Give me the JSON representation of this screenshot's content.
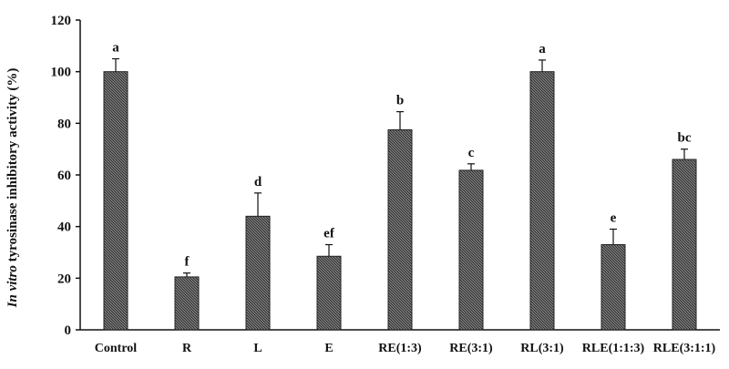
{
  "chart_data": {
    "type": "bar",
    "categories": [
      "Control",
      "R",
      "L",
      "E",
      "RE(1:3)",
      "RE(3:1)",
      "RL(3:1)",
      "RLE(1:1:3)",
      "RLE(3:1:1)"
    ],
    "values": [
      100,
      20.5,
      44,
      28.5,
      77.5,
      61.8,
      100,
      33,
      66
    ],
    "errors": [
      5,
      1.5,
      9,
      4.5,
      7,
      2.5,
      4.5,
      6,
      4
    ],
    "significance_letters": [
      "a",
      "f",
      "d",
      "ef",
      "b",
      "c",
      "a",
      "e",
      "bc"
    ],
    "ylabel_italic": "In vitro",
    "ylabel_rest": " tyrosinase inhibitory activity (%)",
    "xlabel": "",
    "ylim": [
      0,
      120
    ],
    "yticks": [
      0,
      20,
      40,
      60,
      80,
      100,
      120
    ],
    "grid": false,
    "legend": "none",
    "bar_fill": "hatched dark gray",
    "bar_color": "#4a4a4a"
  }
}
